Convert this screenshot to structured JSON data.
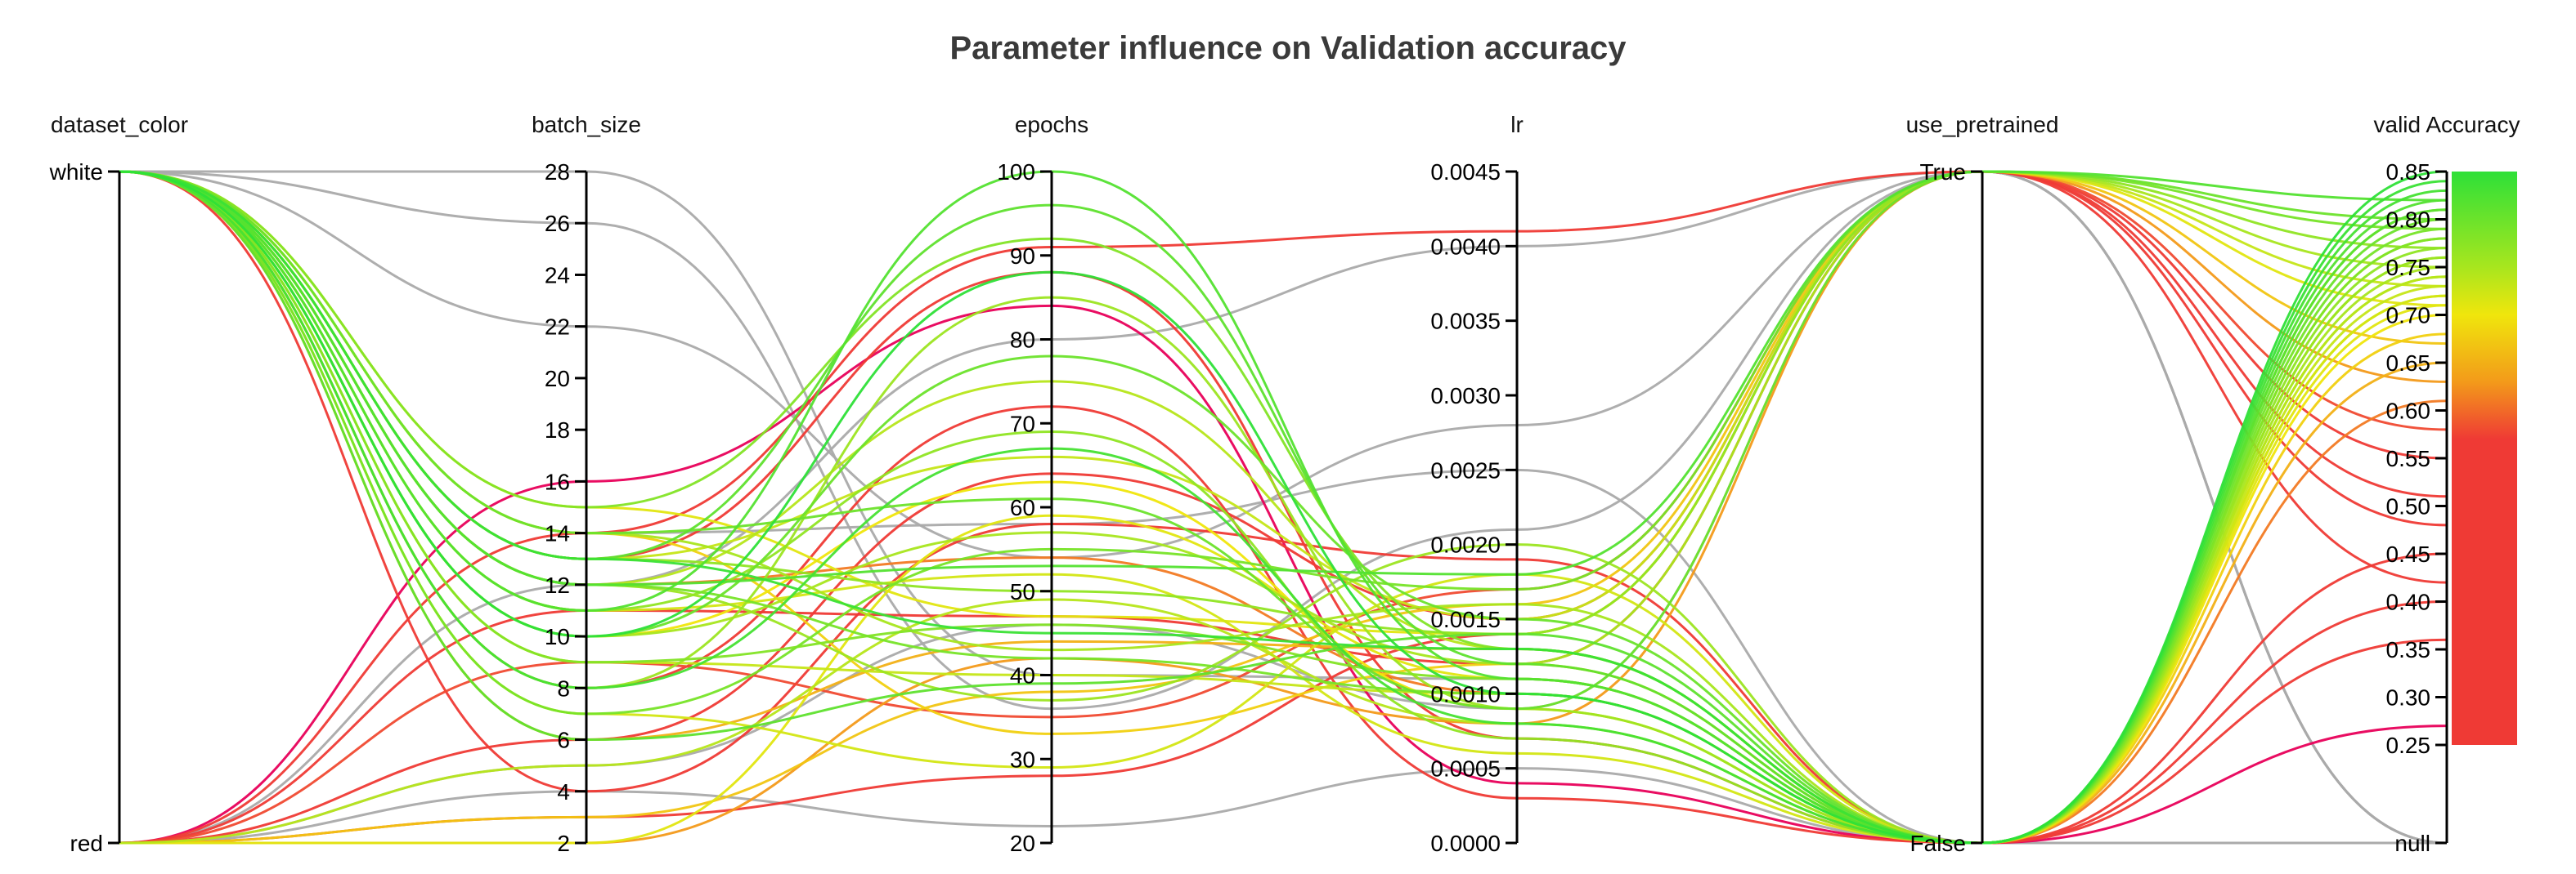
{
  "chart_data": {
    "type": "parallel_coordinates",
    "title": "Parameter influence on Validation accuracy",
    "axes": [
      {
        "key": "dataset_color",
        "label": "dataset_color",
        "kind": "categorical",
        "ticks": [
          "white",
          "red"
        ]
      },
      {
        "key": "batch_size",
        "label": "batch_size",
        "kind": "numeric",
        "range": [
          2,
          28
        ],
        "ticks": [
          "28",
          "26",
          "24",
          "22",
          "20",
          "18",
          "16",
          "14",
          "12",
          "10",
          "8",
          "6",
          "4",
          "2"
        ]
      },
      {
        "key": "epochs",
        "label": "epochs",
        "kind": "numeric",
        "range": [
          20,
          100
        ],
        "ticks": [
          "100",
          "90",
          "80",
          "70",
          "60",
          "50",
          "40",
          "30",
          "20"
        ]
      },
      {
        "key": "lr",
        "label": "lr",
        "kind": "numeric",
        "range": [
          0,
          0.0045
        ],
        "ticks": [
          "0.0045",
          "0.0040",
          "0.0035",
          "0.0030",
          "0.0025",
          "0.0020",
          "0.0015",
          "0.0010",
          "0.0005",
          "0.0000"
        ]
      },
      {
        "key": "use_pretrained",
        "label": "use_pretrained",
        "kind": "categorical",
        "ticks": [
          "True",
          "False"
        ]
      },
      {
        "key": "valid_accuracy",
        "label": "valid Accuracy",
        "kind": "numeric",
        "range": [
          0.25,
          0.85
        ],
        "null_label": "null",
        "ticks": [
          "0.85",
          "0.80",
          "0.75",
          "0.70",
          "0.65",
          "0.60",
          "0.55",
          "0.50",
          "0.45",
          "0.40",
          "0.35",
          "0.30",
          "0.25",
          "null"
        ]
      }
    ],
    "colorscale": {
      "range": [
        0.25,
        0.85
      ],
      "stops": [
        {
          "value": 0.85,
          "color": "#2ee038"
        },
        {
          "value": 0.75,
          "color": "#a8e61e"
        },
        {
          "value": 0.7,
          "color": "#f0e60c"
        },
        {
          "value": 0.63,
          "color": "#f39a1a"
        },
        {
          "value": 0.57,
          "color": "#ef3a35"
        },
        {
          "value": 0.25,
          "color": "#ef3a35"
        }
      ],
      "null_color": "#aaaaaa",
      "low_accent_color": "#e8005a"
    },
    "runs": [
      {
        "dataset_color": "white",
        "batch_size": 28,
        "epochs": 40,
        "lr": 0.0011,
        "use_pretrained": "False",
        "valid_accuracy": null
      },
      {
        "dataset_color": "white",
        "batch_size": 26,
        "epochs": 36,
        "lr": 0.0021,
        "use_pretrained": "True",
        "valid_accuracy": null
      },
      {
        "dataset_color": "white",
        "batch_size": 22,
        "epochs": 54,
        "lr": 0.0028,
        "use_pretrained": "True",
        "valid_accuracy": null
      },
      {
        "dataset_color": "white",
        "batch_size": 14,
        "epochs": 58,
        "lr": 0.0025,
        "use_pretrained": "False",
        "valid_accuracy": null
      },
      {
        "dataset_color": "red",
        "batch_size": 12,
        "epochs": 80,
        "lr": 0.004,
        "use_pretrained": "True",
        "valid_accuracy": null
      },
      {
        "dataset_color": "red",
        "batch_size": 4,
        "epochs": 22,
        "lr": 0.0005,
        "use_pretrained": "False",
        "valid_accuracy": null
      },
      {
        "dataset_color": "red",
        "batch_size": 5,
        "epochs": 46,
        "lr": 0.0009,
        "use_pretrained": "True",
        "valid_accuracy": null
      },
      {
        "dataset_color": "red",
        "batch_size": 14,
        "epochs": 91,
        "lr": 0.0041,
        "use_pretrained": "True",
        "valid_accuracy": 0.51
      },
      {
        "dataset_color": "red",
        "batch_size": 16,
        "epochs": 84,
        "lr": 0.0004,
        "use_pretrained": "False",
        "valid_accuracy": 0.27
      },
      {
        "dataset_color": "red",
        "batch_size": 6,
        "epochs": 64,
        "lr": 0.0015,
        "use_pretrained": "True",
        "valid_accuracy": 0.42
      },
      {
        "dataset_color": "white",
        "batch_size": 4,
        "epochs": 58,
        "lr": 0.0019,
        "use_pretrained": "False",
        "valid_accuracy": 0.36
      },
      {
        "dataset_color": "red",
        "batch_size": 11,
        "epochs": 47,
        "lr": 0.0012,
        "use_pretrained": "True",
        "valid_accuracy": 0.48
      },
      {
        "dataset_color": "white",
        "batch_size": 8,
        "epochs": 72,
        "lr": 0.0003,
        "use_pretrained": "False",
        "valid_accuracy": 0.45
      },
      {
        "dataset_color": "red",
        "batch_size": 3,
        "epochs": 28,
        "lr": 0.0014,
        "use_pretrained": "True",
        "valid_accuracy": 0.55
      },
      {
        "dataset_color": "white",
        "batch_size": 13,
        "epochs": 88,
        "lr": 0.0007,
        "use_pretrained": "False",
        "valid_accuracy": 0.4
      },
      {
        "dataset_color": "red",
        "batch_size": 9,
        "epochs": 35,
        "lr": 0.0017,
        "use_pretrained": "True",
        "valid_accuracy": 0.58
      },
      {
        "dataset_color": "white",
        "batch_size": 12,
        "epochs": 54,
        "lr": 0.001,
        "use_pretrained": "False",
        "valid_accuracy": 0.61
      },
      {
        "dataset_color": "red",
        "batch_size": 2,
        "epochs": 42,
        "lr": 0.0008,
        "use_pretrained": "True",
        "valid_accuracy": 0.63
      },
      {
        "dataset_color": "white",
        "batch_size": 6,
        "epochs": 44,
        "lr": 0.0013,
        "use_pretrained": "False",
        "valid_accuracy": 0.65
      },
      {
        "dataset_color": "red",
        "batch_size": 3,
        "epochs": 38,
        "lr": 0.0016,
        "use_pretrained": "True",
        "valid_accuracy": 0.67
      },
      {
        "dataset_color": "white",
        "batch_size": 14,
        "epochs": 33,
        "lr": 0.0012,
        "use_pretrained": "False",
        "valid_accuracy": 0.68
      },
      {
        "dataset_color": "white",
        "batch_size": 10,
        "epochs": 63,
        "lr": 0.0009,
        "use_pretrained": "False",
        "valid_accuracy": 0.7
      },
      {
        "dataset_color": "white",
        "batch_size": 15,
        "epochs": 47,
        "lr": 0.0014,
        "use_pretrained": "True",
        "valid_accuracy": 0.71
      },
      {
        "dataset_color": "red",
        "batch_size": 2,
        "epochs": 59,
        "lr": 0.0011,
        "use_pretrained": "False",
        "valid_accuracy": 0.71
      },
      {
        "dataset_color": "white",
        "batch_size": 7,
        "epochs": 29,
        "lr": 0.0018,
        "use_pretrained": "False",
        "valid_accuracy": 0.72
      },
      {
        "dataset_color": "white",
        "batch_size": 11,
        "epochs": 52,
        "lr": 0.0006,
        "use_pretrained": "False",
        "valid_accuracy": 0.72
      },
      {
        "dataset_color": "white",
        "batch_size": 13,
        "epochs": 66,
        "lr": 0.0015,
        "use_pretrained": "True",
        "valid_accuracy": 0.73
      },
      {
        "dataset_color": "white",
        "batch_size": 9,
        "epochs": 40,
        "lr": 0.001,
        "use_pretrained": "False",
        "valid_accuracy": 0.73
      },
      {
        "dataset_color": "white",
        "batch_size": 12,
        "epochs": 75,
        "lr": 0.0013,
        "use_pretrained": "False",
        "valid_accuracy": 0.74
      },
      {
        "dataset_color": "red",
        "batch_size": 5,
        "epochs": 49,
        "lr": 0.0008,
        "use_pretrained": "False",
        "valid_accuracy": 0.74
      },
      {
        "dataset_color": "white",
        "batch_size": 14,
        "epochs": 43,
        "lr": 0.0016,
        "use_pretrained": "False",
        "valid_accuracy": 0.75
      },
      {
        "dataset_color": "white",
        "batch_size": 10,
        "epochs": 57,
        "lr": 0.0012,
        "use_pretrained": "True",
        "valid_accuracy": 0.75
      },
      {
        "dataset_color": "white",
        "batch_size": 8,
        "epochs": 85,
        "lr": 0.0009,
        "use_pretrained": "False",
        "valid_accuracy": 0.76
      },
      {
        "dataset_color": "white",
        "batch_size": 12,
        "epochs": 37,
        "lr": 0.002,
        "use_pretrained": "False",
        "valid_accuracy": 0.76
      },
      {
        "dataset_color": "white",
        "batch_size": 13,
        "epochs": 50,
        "lr": 0.0014,
        "use_pretrained": "True",
        "valid_accuracy": 0.77
      },
      {
        "dataset_color": "white",
        "batch_size": 11,
        "epochs": 69,
        "lr": 0.0007,
        "use_pretrained": "False",
        "valid_accuracy": 0.77
      },
      {
        "dataset_color": "white",
        "batch_size": 9,
        "epochs": 46,
        "lr": 0.0011,
        "use_pretrained": "False",
        "valid_accuracy": 0.78
      },
      {
        "dataset_color": "white",
        "batch_size": 15,
        "epochs": 92,
        "lr": 0.0013,
        "use_pretrained": "False",
        "valid_accuracy": 0.78
      },
      {
        "dataset_color": "white",
        "batch_size": 7,
        "epochs": 55,
        "lr": 0.0017,
        "use_pretrained": "True",
        "valid_accuracy": 0.79
      },
      {
        "dataset_color": "white",
        "batch_size": 12,
        "epochs": 42,
        "lr": 0.001,
        "use_pretrained": "False",
        "valid_accuracy": 0.79
      },
      {
        "dataset_color": "white",
        "batch_size": 10,
        "epochs": 78,
        "lr": 0.0015,
        "use_pretrained": "False",
        "valid_accuracy": 0.8
      },
      {
        "dataset_color": "white",
        "batch_size": 14,
        "epochs": 61,
        "lr": 0.0009,
        "use_pretrained": "True",
        "valid_accuracy": 0.8
      },
      {
        "dataset_color": "white",
        "batch_size": 13,
        "epochs": 96,
        "lr": 0.0012,
        "use_pretrained": "False",
        "valid_accuracy": 0.81
      },
      {
        "dataset_color": "white",
        "batch_size": 6,
        "epochs": 39,
        "lr": 0.0014,
        "use_pretrained": "False",
        "valid_accuracy": 0.81
      },
      {
        "dataset_color": "white",
        "batch_size": 11,
        "epochs": 100,
        "lr": 0.0011,
        "use_pretrained": "False",
        "valid_accuracy": 0.82
      },
      {
        "dataset_color": "white",
        "batch_size": 12,
        "epochs": 53,
        "lr": 0.0018,
        "use_pretrained": "True",
        "valid_accuracy": 0.82
      },
      {
        "dataset_color": "white",
        "batch_size": 8,
        "epochs": 67,
        "lr": 0.0008,
        "use_pretrained": "False",
        "valid_accuracy": 0.83
      },
      {
        "dataset_color": "white",
        "batch_size": 13,
        "epochs": 45,
        "lr": 0.0013,
        "use_pretrained": "False",
        "valid_accuracy": 0.84
      },
      {
        "dataset_color": "white",
        "batch_size": 10,
        "epochs": 88,
        "lr": 0.001,
        "use_pretrained": "False",
        "valid_accuracy": 0.85
      }
    ]
  }
}
